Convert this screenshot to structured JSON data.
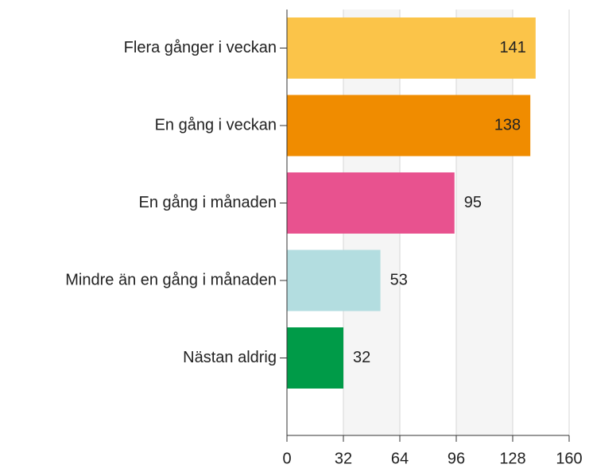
{
  "chart_data": {
    "type": "bar",
    "orientation": "horizontal",
    "categories": [
      "Flera gånger i veckan",
      "En gång i veckan",
      "En gång i månaden",
      "Mindre än en gång i månaden",
      "Nästan aldrig"
    ],
    "values": [
      141,
      138,
      95,
      53,
      32
    ],
    "colors": [
      "#fbc449",
      "#f08c00",
      "#e8528f",
      "#b3dde0",
      "#009b48"
    ],
    "xlim": [
      0,
      160
    ],
    "xticks": [
      0,
      32,
      64,
      96,
      128,
      160
    ],
    "grid": true
  }
}
